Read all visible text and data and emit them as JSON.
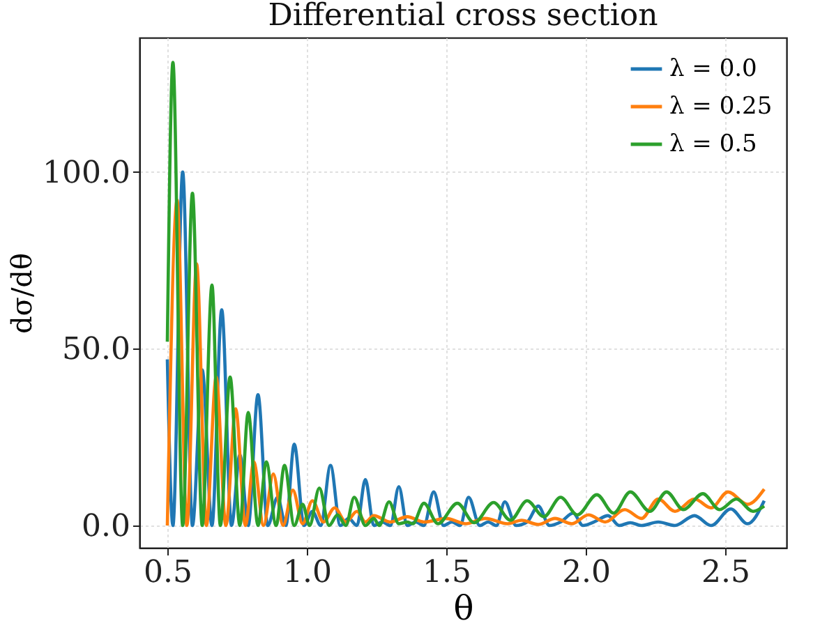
{
  "chart_data": {
    "type": "line",
    "title": "Differential cross section",
    "xlabel": "θ",
    "ylabel": "dσ/dθ",
    "xlim": [
      0.4,
      2.72
    ],
    "ylim": [
      -6.3,
      138
    ],
    "xticks": [
      0.5,
      {
        "value": 1,
        "label": "1.0"
      },
      1.5,
      {
        "value": 2,
        "label": "2.0"
      },
      2.5
    ],
    "yticks": [
      {
        "value": 0,
        "label": "0.0"
      },
      {
        "value": 50,
        "label": "50.0"
      },
      {
        "value": 100,
        "label": "100.0"
      }
    ],
    "grid": true,
    "legend": "top right",
    "line_style": "solid",
    "marker": "none",
    "series": [
      {
        "name": "λ = 0.0",
        "color": "#1f77b4",
        "x": [
          0.5,
          0.52,
          0.555,
          0.59,
          0.625,
          0.66,
          0.695,
          0.73,
          0.76,
          0.79,
          0.825,
          0.86,
          0.895,
          0.925,
          0.955,
          0.99,
          1.02,
          1.05,
          1.085,
          1.12,
          1.15,
          1.18,
          1.21,
          1.24,
          1.27,
          1.3,
          1.33,
          1.36,
          1.39,
          1.42,
          1.455,
          1.49,
          1.52,
          1.55,
          1.58,
          1.62,
          1.65,
          1.68,
          1.71,
          1.75,
          1.79,
          1.83,
          1.87,
          1.91,
          1.955,
          1.99,
          2.03,
          2.08,
          2.12,
          2.16,
          2.2,
          2.26,
          2.32,
          2.39,
          2.45,
          2.52,
          2.58,
          2.64
        ],
        "values": [
          47,
          0,
          100,
          0,
          44,
          0,
          61,
          0,
          20,
          0,
          37,
          0,
          8,
          0,
          23,
          0,
          4,
          0,
          17,
          0,
          2,
          0,
          13,
          0,
          1,
          0,
          11,
          0,
          1,
          0,
          9.5,
          0,
          1,
          0,
          8,
          0,
          1,
          0,
          6.7,
          0,
          1,
          5.5,
          0,
          1,
          3.5,
          0,
          1,
          2.8,
          0,
          0.8,
          0,
          1,
          0,
          2.8,
          0,
          4.7,
          0.5,
          7
        ]
      },
      {
        "name": "λ = 0.25",
        "color": "#ff7f0e",
        "x": [
          0.5,
          0.535,
          0.57,
          0.605,
          0.64,
          0.675,
          0.71,
          0.745,
          0.78,
          0.81,
          0.845,
          0.88,
          0.915,
          0.95,
          0.985,
          1.02,
          1.06,
          1.1,
          1.14,
          1.18,
          1.21,
          1.24,
          1.3,
          1.36,
          1.42,
          1.5,
          1.57,
          1.64,
          1.72,
          1.77,
          1.83,
          1.89,
          1.95,
          2.01,
          2.07,
          2.14,
          2.2,
          2.26,
          2.32,
          2.39,
          2.45,
          2.51,
          2.58,
          2.64
        ],
        "values": [
          0,
          92,
          0,
          74,
          0,
          42,
          0,
          33,
          0,
          18,
          0,
          14.6,
          0,
          10,
          0.5,
          7,
          1,
          5,
          1,
          4,
          1,
          2.8,
          1,
          2.5,
          1,
          2,
          0.5,
          2,
          0.5,
          1.5,
          0.3,
          2,
          0.5,
          3,
          1,
          4.5,
          2,
          7.5,
          4,
          7.5,
          5,
          9.5,
          6,
          10.3
        ]
      },
      {
        "name": "λ = 0.5",
        "color": "#2ca02c",
        "x": [
          0.5,
          0.52,
          0.555,
          0.59,
          0.625,
          0.66,
          0.69,
          0.725,
          0.76,
          0.79,
          0.825,
          0.855,
          0.89,
          0.92,
          0.955,
          0.985,
          1.01,
          1.045,
          1.08,
          1.11,
          1.14,
          1.17,
          1.21,
          1.24,
          1.26,
          1.295,
          1.33,
          1.36,
          1.38,
          1.42,
          1.47,
          1.54,
          1.6,
          1.67,
          1.73,
          1.79,
          1.85,
          1.91,
          1.97,
          2.04,
          2.1,
          2.16,
          2.23,
          2.29,
          2.35,
          2.42,
          2.48,
          2.54,
          2.6,
          2.64
        ],
        "values": [
          52,
          131,
          0,
          94,
          0,
          68,
          0,
          42,
          0,
          32,
          0,
          18,
          0,
          17,
          0,
          6,
          0,
          10.6,
          0,
          3,
          0,
          8,
          0,
          2,
          0,
          6.7,
          0.5,
          1,
          0.5,
          6.3,
          0.5,
          6.3,
          0.8,
          6.5,
          1.5,
          7,
          2.5,
          8,
          3,
          8.7,
          3.5,
          9.5,
          4,
          9.5,
          4.5,
          9,
          4.5,
          7.5,
          4,
          5.5
        ]
      }
    ]
  }
}
